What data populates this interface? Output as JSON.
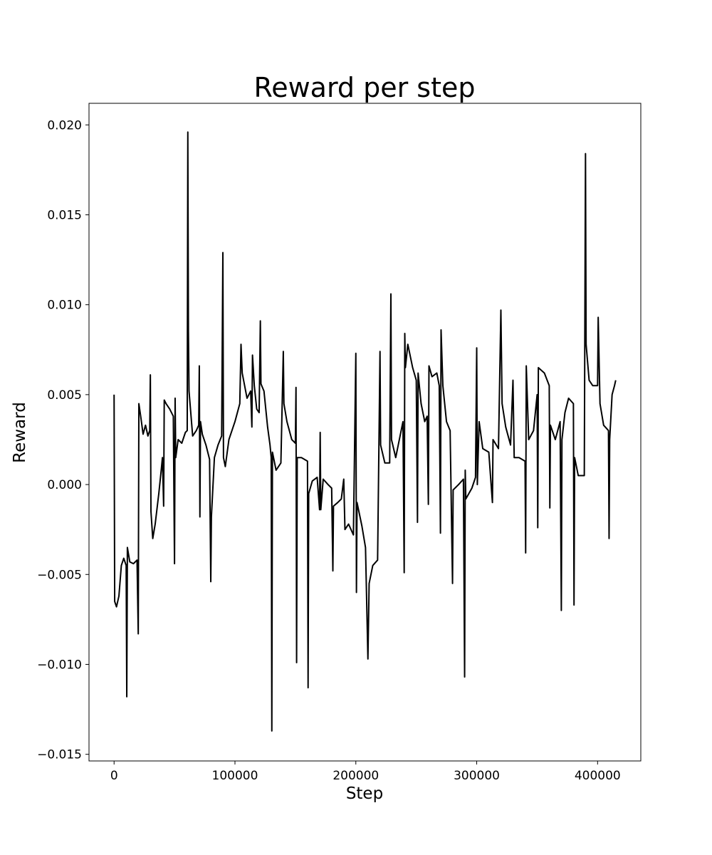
{
  "chart_data": {
    "type": "line",
    "title": "Reward per step",
    "x_label": "Step",
    "y_label": "Reward",
    "x": [
      0,
      500,
      2000,
      4000,
      6000,
      8000,
      10000,
      10500,
      11000,
      13000,
      16000,
      19000,
      20000,
      20500,
      22000,
      24000,
      26000,
      28000,
      29500,
      30000,
      30500,
      32000,
      34000,
      37000,
      39000,
      40000,
      41000,
      41500,
      43000,
      46000,
      49000,
      50000,
      50500,
      51000,
      53000,
      56000,
      59000,
      60500,
      61000,
      61500,
      62000,
      65000,
      68000,
      70000,
      70500,
      71000,
      71500,
      73000,
      76000,
      79000,
      80000,
      80500,
      83000,
      86000,
      89000,
      90000,
      90500,
      92000,
      95000,
      100000,
      104000,
      105000,
      106000,
      110000,
      113000,
      114000,
      114500,
      116000,
      118000,
      120000,
      121000,
      121500,
      124000,
      127000,
      129000,
      130000,
      130500,
      131000,
      134000,
      138000,
      140000,
      140500,
      143000,
      147000,
      150000,
      150500,
      151000,
      151500,
      155000,
      160000,
      160500,
      161000,
      164000,
      168000,
      170000,
      170500,
      171000,
      173000,
      177000,
      180000,
      181000,
      181500,
      185000,
      188000,
      190000,
      191000,
      194000,
      198000,
      200000,
      200500,
      201000,
      205000,
      208000,
      210000,
      211000,
      214000,
      218000,
      220000,
      220500,
      224000,
      228000,
      229000,
      229500,
      233000,
      236000,
      239000,
      240000,
      240500,
      241000,
      243000,
      247000,
      250000,
      251000,
      251500,
      254000,
      257000,
      259000,
      260000,
      260500,
      263000,
      267000,
      269000,
      270000,
      270500,
      272000,
      275000,
      278000,
      280000,
      280500,
      285000,
      289000,
      290000,
      290500,
      291000,
      296000,
      299000,
      300000,
      300500,
      302000,
      305000,
      310000,
      313000,
      313500,
      318000,
      320000,
      321000,
      324000,
      328000,
      330000,
      331000,
      335000,
      340000,
      340500,
      341000,
      343000,
      347000,
      350000,
      350500,
      351000,
      356000,
      360000,
      360500,
      361000,
      365000,
      369000,
      370000,
      370500,
      373000,
      376000,
      380000,
      380500,
      381000,
      384000,
      389000,
      390000,
      390500,
      393000,
      396000,
      400000,
      400500,
      402000,
      405000,
      409000,
      409500,
      410000,
      412000,
      414000,
      415000
    ],
    "series": [
      {
        "color": "#000000",
        "values": [
          0.005,
          -0.0065,
          -0.0068,
          -0.0062,
          -0.0045,
          -0.0041,
          -0.0045,
          -0.0118,
          -0.0035,
          -0.0043,
          -0.0044,
          -0.0042,
          -0.0083,
          0.0045,
          0.0038,
          0.0028,
          0.0033,
          0.0027,
          0.003,
          0.0061,
          -0.0015,
          -0.003,
          -0.0022,
          -0.0005,
          0.0008,
          0.0015,
          -0.0012,
          0.0047,
          0.0045,
          0.0042,
          0.0038,
          -0.0044,
          0.0048,
          0.0015,
          0.0025,
          0.0023,
          0.0029,
          0.003,
          0.0196,
          0.0085,
          0.0052,
          0.0027,
          0.003,
          0.0033,
          0.0066,
          -0.0018,
          0.0035,
          0.0028,
          0.0022,
          0.0014,
          -0.0054,
          -0.0018,
          0.0015,
          0.0022,
          0.0027,
          0.0129,
          0.0015,
          0.001,
          0.0025,
          0.0035,
          0.0045,
          0.0078,
          0.0062,
          0.0048,
          0.0052,
          0.0032,
          0.0072,
          0.0055,
          0.0042,
          0.004,
          0.0091,
          0.0056,
          0.0052,
          0.0032,
          0.0022,
          0.0015,
          -0.0137,
          0.0018,
          0.0008,
          0.0012,
          0.0074,
          0.0045,
          0.0035,
          0.0025,
          0.0023,
          0.0054,
          -0.0099,
          0.0015,
          0.0015,
          0.0013,
          -0.0113,
          -0.0005,
          0.0002,
          0.0004,
          -0.0014,
          0.0029,
          -0.0014,
          0.0003,
          0,
          -0.0002,
          -0.0048,
          -0.0012,
          -0.001,
          -0.0008,
          0.0003,
          -0.0025,
          -0.0022,
          -0.0028,
          0.0073,
          -0.006,
          -0.001,
          -0.0023,
          -0.0035,
          -0.0097,
          -0.0055,
          -0.0045,
          -0.0042,
          0.0074,
          0.0022,
          0.0012,
          0.0012,
          0.0106,
          0.0025,
          0.0015,
          0.0025,
          0.0035,
          -0.0049,
          0.0084,
          0.0065,
          0.0078,
          0.0065,
          0.0058,
          -0.0021,
          0.0062,
          0.0045,
          0.0035,
          0.0038,
          -0.0011,
          0.0066,
          0.006,
          0.0062,
          0.0055,
          -0.0027,
          0.0086,
          0.0055,
          0.0035,
          0.003,
          -0.0055,
          -0.0003,
          0,
          0.0003,
          -0.0107,
          0.0008,
          -0.0008,
          -0.0002,
          0.0004,
          0.0076,
          0,
          0.0035,
          0.002,
          0.0018,
          -0.001,
          0.0025,
          0.002,
          0.0097,
          0.0045,
          0.0032,
          0.0022,
          0.0058,
          0.0015,
          0.0015,
          0.0013,
          -0.0038,
          0.0066,
          0.0025,
          0.003,
          0.005,
          -0.0024,
          0.0065,
          0.0062,
          0.0055,
          -0.0013,
          0.0033,
          0.0025,
          0.0035,
          -0.007,
          0.0025,
          0.004,
          0.0048,
          0.0045,
          -0.0067,
          0.0015,
          0.0005,
          0.0005,
          0.0184,
          0.0078,
          0.0058,
          0.0055,
          0.0055,
          0.0093,
          0.0045,
          0.0033,
          0.003,
          -0.003,
          0.0025,
          0.005,
          0.0055,
          0.0058
        ]
      }
    ],
    "xlim": [
      -20750,
      435750
    ],
    "xticks": [
      0,
      100000,
      200000,
      300000,
      400000
    ],
    "ylim": [
      -0.01537,
      0.0212
    ],
    "yticks": [
      {
        "value": -0.015,
        "label": "−0.015"
      },
      {
        "value": -0.01,
        "label": "−0.010"
      },
      {
        "value": -0.005,
        "label": "−0.005"
      },
      {
        "value": 0,
        "label": "0.000"
      },
      {
        "value": 0.005,
        "label": "0.005"
      },
      {
        "value": 0.01,
        "label": "0.010"
      },
      {
        "value": 0.015,
        "label": "0.015"
      },
      {
        "value": 0.02,
        "label": "0.020"
      }
    ]
  }
}
